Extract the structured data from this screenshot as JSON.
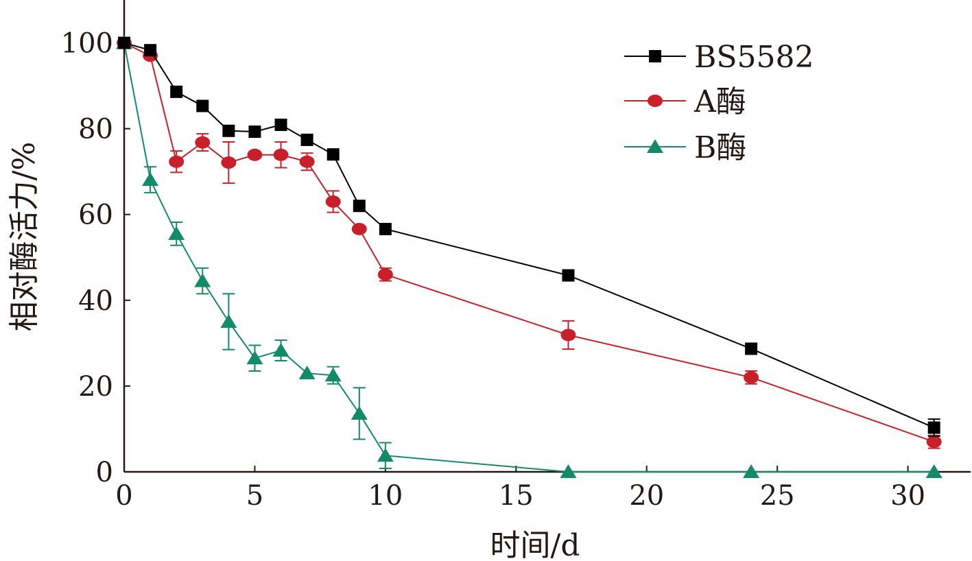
{
  "chart_data": {
    "type": "line",
    "title": "",
    "xlabel": "时间/d",
    "ylabel": "相对酶活力/%",
    "xlim": [
      0,
      32.4
    ],
    "ylim": [
      0,
      110
    ],
    "xticks": [
      0,
      5,
      10,
      15,
      20,
      25,
      30
    ],
    "yticks": [
      0,
      20,
      40,
      60,
      80,
      100
    ],
    "grid": false,
    "legend_position": "top-right",
    "series": [
      {
        "name": "BS5582",
        "color": "#000000",
        "marker": "square",
        "x": [
          0,
          1,
          2,
          3,
          4,
          5,
          6,
          7,
          8,
          9,
          10,
          17,
          24,
          31
        ],
        "y": [
          100,
          98.3,
          88.6,
          85.3,
          79.5,
          79.3,
          80.9,
          77.4,
          74,
          62,
          56.6,
          45.8,
          28.7,
          10.3
        ],
        "err": [
          0,
          0,
          0,
          0,
          0,
          0,
          0,
          0,
          0,
          0,
          0,
          0,
          0,
          2
        ]
      },
      {
        "name": "A酶",
        "color": "#c8202a",
        "marker": "circle",
        "x": [
          0,
          1,
          2,
          3,
          4,
          5,
          6,
          7,
          8,
          9,
          10,
          17,
          24,
          31
        ],
        "y": [
          100,
          97,
          72.3,
          76.8,
          72.1,
          73.9,
          73.9,
          72.3,
          63,
          56.6,
          46,
          31.9,
          22,
          7
        ],
        "err": [
          0,
          0,
          2.5,
          2,
          4.8,
          0,
          3,
          2,
          2.5,
          0,
          1.5,
          3.3,
          1.5,
          1.5
        ]
      },
      {
        "name": "B酶",
        "color": "#138a68",
        "marker": "triangle",
        "x": [
          0,
          1,
          2,
          3,
          4,
          5,
          6,
          7,
          8,
          9,
          10,
          17,
          24,
          31
        ],
        "y": [
          100,
          68.1,
          55.5,
          44.5,
          35,
          26.5,
          28.3,
          23,
          22.5,
          13.6,
          3.8,
          0,
          0,
          0
        ],
        "err": [
          0,
          3,
          2.7,
          3,
          6.5,
          3,
          2.4,
          0,
          2,
          6,
          3,
          0,
          0,
          0
        ]
      }
    ]
  }
}
